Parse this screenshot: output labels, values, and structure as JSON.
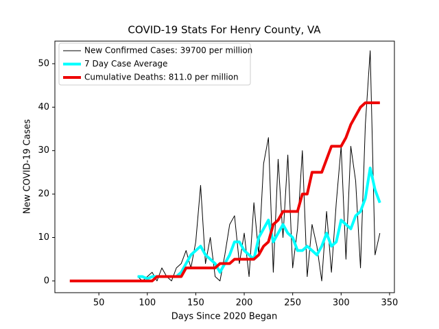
{
  "chart_data": {
    "type": "line",
    "title": "COVID-19 Stats For Henry County, VA",
    "xlabel": "Days Since 2020 Began",
    "ylabel": "New COVID-19 Cases",
    "x": [
      20,
      25,
      30,
      35,
      40,
      45,
      50,
      55,
      60,
      65,
      70,
      75,
      80,
      85,
      90,
      95,
      100,
      105,
      110,
      115,
      120,
      125,
      130,
      135,
      140,
      145,
      150,
      155,
      160,
      165,
      170,
      175,
      180,
      185,
      190,
      195,
      200,
      205,
      210,
      215,
      220,
      225,
      230,
      235,
      240,
      245,
      250,
      255,
      260,
      265,
      270,
      275,
      280,
      285,
      290,
      295,
      300,
      305,
      310,
      315,
      320,
      325,
      330,
      335,
      340
    ],
    "series": [
      {
        "name": "New Confirmed Cases: 39700 per million",
        "color": "#000000",
        "width": 1,
        "values": [
          null,
          null,
          null,
          null,
          null,
          null,
          null,
          null,
          null,
          null,
          null,
          null,
          null,
          null,
          1,
          0,
          1,
          2,
          0,
          3,
          1,
          0,
          3,
          4,
          7,
          3,
          9,
          22,
          4,
          10,
          1,
          0,
          6,
          13,
          15,
          4,
          11,
          1,
          18,
          6,
          27,
          33,
          2,
          28,
          10,
          29,
          3,
          12,
          30,
          1,
          13,
          8,
          0,
          16,
          2,
          18,
          31,
          5,
          31,
          23,
          3,
          36,
          53,
          6,
          11
        ]
      },
      {
        "name": "7 Day Case Average",
        "color": "#00ffff",
        "width": 4,
        "values": [
          null,
          null,
          null,
          null,
          null,
          null,
          null,
          null,
          null,
          null,
          null,
          null,
          null,
          null,
          1,
          1,
          0.5,
          1,
          1,
          1,
          1,
          1,
          1,
          2,
          4,
          6,
          7,
          8,
          6,
          5,
          4,
          2,
          4,
          6,
          9,
          9,
          7,
          6,
          5,
          10,
          12,
          14,
          9,
          11,
          13,
          11,
          10,
          7,
          7,
          8,
          7,
          6,
          8,
          11,
          8,
          9,
          14,
          13,
          12,
          15,
          16,
          19,
          26,
          21,
          18
        ]
      },
      {
        "name": "Cumulative Deaths: 811.0 per million",
        "color": "#ee0000",
        "width": 4,
        "values": [
          0,
          0,
          0,
          0,
          0,
          0,
          0,
          0,
          0,
          0,
          0,
          0,
          0,
          0,
          0,
          0,
          0,
          0,
          1,
          1,
          1,
          1,
          1,
          1,
          3,
          3,
          3,
          3,
          3,
          3,
          3,
          4,
          4,
          4,
          5,
          5,
          5,
          5,
          5,
          6,
          8,
          9,
          13,
          14,
          16,
          16,
          16,
          16,
          20,
          20,
          25,
          25,
          25,
          28,
          31,
          31,
          31,
          33,
          36,
          38,
          40,
          41,
          41,
          41,
          41
        ]
      }
    ],
    "xlim": [
      4.6,
      355
    ],
    "ylim": [
      -2.7,
      55.2
    ],
    "xticks": [
      50,
      100,
      150,
      200,
      250,
      300,
      350
    ],
    "yticks": [
      0,
      10,
      20,
      30,
      40,
      50
    ],
    "legend": "upper left"
  }
}
